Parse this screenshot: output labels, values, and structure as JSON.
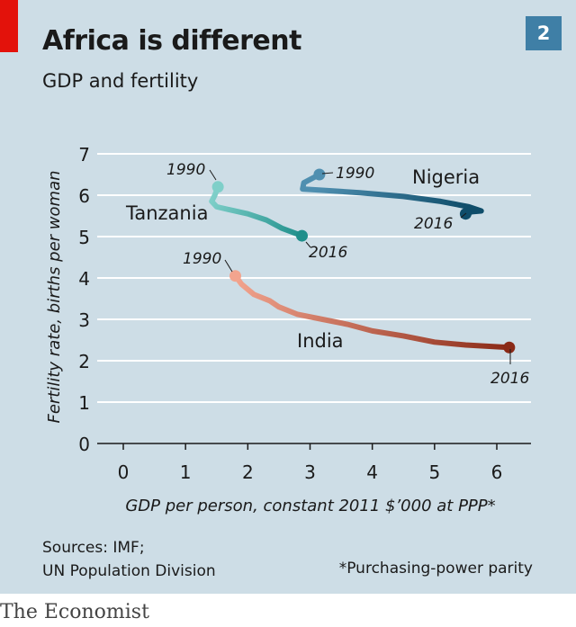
{
  "title": "Africa is different",
  "subtitle": "GDP and fertility",
  "chart_number": "2",
  "sources": [
    "Sources: IMF;",
    "UN Population Division"
  ],
  "footnote": "*Purchasing-power parity",
  "brand": "The Economist",
  "colors": {
    "background": "#cddde6",
    "nigeria": "#1f5a78",
    "tanzania": "#2e9c9a",
    "india": "#c2553d",
    "accent_red": "#e3120b",
    "badge": "#3f7fa6"
  },
  "chart_data": {
    "type": "line",
    "xlabel": "GDP per person, constant 2011 $’000 at PPP*",
    "ylabel": "Fertility rate, births per woman",
    "xlim": [
      0,
      6.3
    ],
    "ylim": [
      0,
      7
    ],
    "xticks": [
      0,
      1,
      2,
      3,
      4,
      5,
      6
    ],
    "yticks": [
      0,
      1,
      2,
      3,
      4,
      5,
      6,
      7
    ],
    "grid": true,
    "series": [
      {
        "name": "Nigeria",
        "start_label": "1990",
        "end_label": "2016",
        "points": [
          [
            3.15,
            6.5
          ],
          [
            2.9,
            6.3
          ],
          [
            2.88,
            6.15
          ],
          [
            3.2,
            6.12
          ],
          [
            3.8,
            6.06
          ],
          [
            4.5,
            5.97
          ],
          [
            5.1,
            5.85
          ],
          [
            5.55,
            5.72
          ],
          [
            5.75,
            5.62
          ],
          [
            5.6,
            5.6
          ],
          [
            5.5,
            5.55
          ]
        ]
      },
      {
        "name": "Tanzania",
        "start_label": "1990",
        "end_label": "2016",
        "points": [
          [
            1.52,
            6.2
          ],
          [
            1.47,
            6.0
          ],
          [
            1.42,
            5.85
          ],
          [
            1.5,
            5.72
          ],
          [
            1.7,
            5.65
          ],
          [
            2.0,
            5.55
          ],
          [
            2.3,
            5.4
          ],
          [
            2.55,
            5.2
          ],
          [
            2.87,
            5.02
          ]
        ]
      },
      {
        "name": "India",
        "start_label": "1990",
        "end_label": "2016",
        "points": [
          [
            1.8,
            4.05
          ],
          [
            1.9,
            3.85
          ],
          [
            2.1,
            3.6
          ],
          [
            2.35,
            3.45
          ],
          [
            2.5,
            3.3
          ],
          [
            2.8,
            3.12
          ],
          [
            3.2,
            3.0
          ],
          [
            3.6,
            2.88
          ],
          [
            4.0,
            2.72
          ],
          [
            4.5,
            2.6
          ],
          [
            5.0,
            2.45
          ],
          [
            5.5,
            2.38
          ],
          [
            6.2,
            2.32
          ]
        ]
      }
    ]
  }
}
